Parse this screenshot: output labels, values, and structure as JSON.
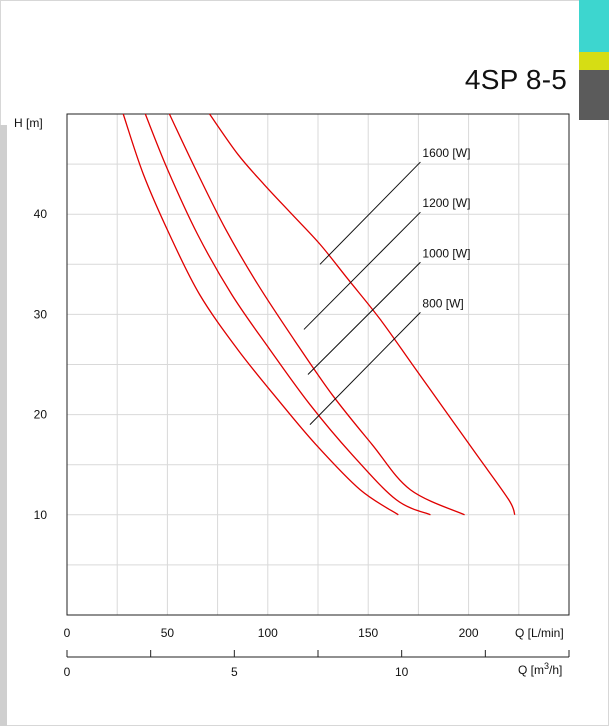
{
  "header": {
    "model": "4SP 8-5",
    "tab_colors": [
      "#3dd6cf",
      "#d6dd14",
      "#5b5b5b"
    ]
  },
  "chart_data": {
    "type": "line",
    "title": "",
    "ylabel": "H [m]",
    "xlabel": "Q [L/min]",
    "xlabel2": "Q [m³/h]",
    "xlim": [
      0,
      250
    ],
    "ylim": [
      0,
      50
    ],
    "x_ticks": [
      0,
      50,
      100,
      150,
      200
    ],
    "y_ticks": [
      10,
      20,
      30,
      40
    ],
    "x2_ticks": [
      0,
      5,
      10
    ],
    "x2_lim": [
      0,
      15
    ],
    "grid": true,
    "line_color": "#e00000",
    "series": [
      {
        "name": "1600 [W]",
        "label_xy": [
          177,
          45.7
        ],
        "leader_to": [
          126,
          35
        ],
        "points": [
          [
            71,
            50
          ],
          [
            85,
            46
          ],
          [
            98,
            43
          ],
          [
            112,
            40
          ],
          [
            126,
            37
          ],
          [
            140,
            33.5
          ],
          [
            156,
            29.5
          ],
          [
            172,
            25
          ],
          [
            188,
            20.5
          ],
          [
            204,
            16
          ],
          [
            220,
            11.5
          ],
          [
            223,
            10
          ]
        ]
      },
      {
        "name": "1200 [W]",
        "label_xy": [
          177,
          40.7
        ],
        "leader_to": [
          118,
          28.5
        ],
        "points": [
          [
            51,
            50
          ],
          [
            64,
            44.5
          ],
          [
            79,
            38.5
          ],
          [
            95,
            33
          ],
          [
            113,
            27.5
          ],
          [
            132,
            22
          ],
          [
            152,
            17
          ],
          [
            171,
            12.5
          ],
          [
            198,
            10
          ]
        ]
      },
      {
        "name": "1000 [W]",
        "label_xy": [
          177,
          35.7
        ],
        "leader_to": [
          120,
          24
        ],
        "points": [
          [
            39,
            50
          ],
          [
            50,
            44.5
          ],
          [
            65,
            38
          ],
          [
            82,
            32
          ],
          [
            101,
            26.5
          ],
          [
            121,
            21
          ],
          [
            142,
            16
          ],
          [
            164,
            11.5
          ],
          [
            181,
            10
          ]
        ]
      },
      {
        "name": "800 [W]",
        "label_xy": [
          177,
          30.7
        ],
        "leader_to": [
          121,
          19
        ],
        "points": [
          [
            28,
            50
          ],
          [
            38,
            44
          ],
          [
            51,
            38
          ],
          [
            66,
            32
          ],
          [
            85,
            26.5
          ],
          [
            105,
            21.5
          ],
          [
            124,
            17
          ],
          [
            146,
            12.5
          ],
          [
            165,
            10
          ]
        ]
      }
    ]
  }
}
